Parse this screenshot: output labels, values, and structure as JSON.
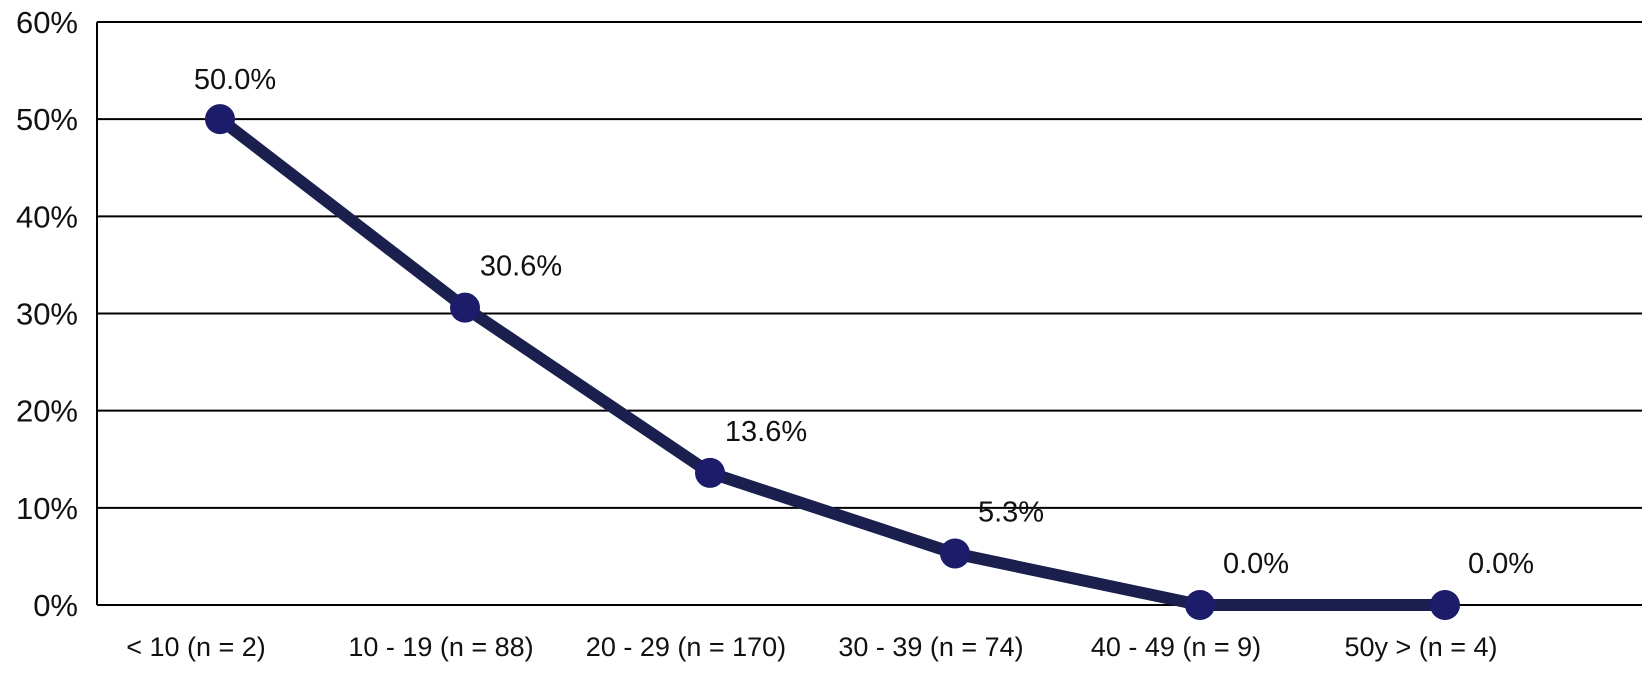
{
  "chart_data": {
    "type": "line",
    "title": "",
    "xlabel": "",
    "ylabel": "",
    "categories": [
      "< 10 (n = 2)",
      "10 - 19 (n = 88)",
      "20 - 29 (n = 170)",
      "30 - 39 (n = 74)",
      "40 - 49 (n = 9)",
      "50y > (n = 4)"
    ],
    "values": [
      50.0,
      30.6,
      13.6,
      5.3,
      0.0,
      0.0
    ],
    "data_labels": [
      "50.0%",
      "30.6%",
      "13.6%",
      "5.3%",
      "0.0%",
      "0.0%"
    ],
    "ylim": [
      0,
      60
    ],
    "y_ticks": [
      0,
      10,
      20,
      30,
      40,
      50,
      60
    ],
    "y_tick_labels": [
      "0%",
      "10%",
      "20%",
      "30%",
      "40%",
      "50%",
      "60%"
    ],
    "grid": true,
    "legend": "none",
    "line_color": "#1a1f4d",
    "marker_color": "#1c1c6b"
  }
}
